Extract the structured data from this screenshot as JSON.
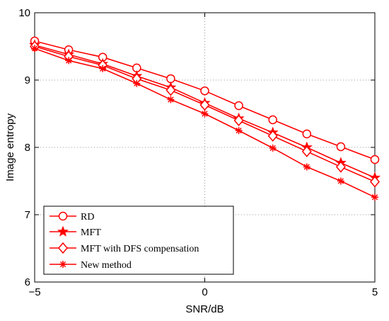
{
  "chart_data": {
    "type": "line",
    "xlabel": "SNR/dB",
    "ylabel": "Image entropy",
    "xlim": [
      -5,
      5
    ],
    "ylim": [
      6,
      10
    ],
    "xticks": [
      -5,
      0,
      5
    ],
    "xtick_labels": [
      "−5",
      "0",
      "5"
    ],
    "yticks": [
      6,
      7,
      8,
      9,
      10
    ],
    "ytick_labels": [
      "6",
      "7",
      "8",
      "9",
      "10"
    ],
    "grid": "dotted lines at x=0 and y=9, 8, 7",
    "legend_position": "bottom-left",
    "line_color": "#ff0000",
    "x": [
      -5,
      -4,
      -3,
      -2,
      -1,
      0,
      1,
      2,
      3,
      4,
      5
    ],
    "series": [
      {
        "name": "RD",
        "marker": "circle",
        "values": [
          9.58,
          9.45,
          9.34,
          9.18,
          9.02,
          8.84,
          8.62,
          8.41,
          8.2,
          8.01,
          7.82
        ]
      },
      {
        "name": "MFT",
        "marker": "star",
        "values": [
          9.52,
          9.38,
          9.24,
          9.06,
          8.89,
          8.66,
          8.43,
          8.22,
          8.0,
          7.77,
          7.55
        ]
      },
      {
        "name": "MFT with DFS compensation",
        "marker": "diamond",
        "values": [
          9.5,
          9.35,
          9.22,
          9.02,
          8.85,
          8.63,
          8.4,
          8.17,
          7.94,
          7.71,
          7.49
        ]
      },
      {
        "name": "New method",
        "marker": "asterisk",
        "values": [
          9.47,
          9.29,
          9.17,
          8.95,
          8.71,
          8.5,
          8.25,
          7.99,
          7.71,
          7.5,
          7.26
        ]
      }
    ]
  }
}
